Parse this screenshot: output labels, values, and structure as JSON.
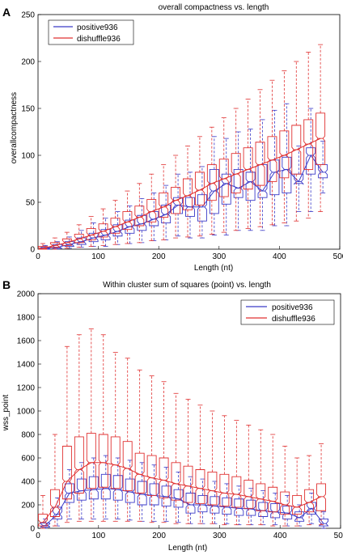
{
  "chart_data": [
    {
      "panel_label": "A",
      "type": "box",
      "title": "overall compactness vs. length",
      "xlabel": "Length (nt)",
      "ylabel": "overallcompactness",
      "xlim": [
        0,
        500
      ],
      "ylim": [
        0,
        250
      ],
      "xticks": [
        0,
        100,
        200,
        300,
        400,
        500
      ],
      "yticks": [
        0,
        50,
        100,
        150,
        200,
        250
      ],
      "legend_position": "top-left",
      "grid": false,
      "series": [
        {
          "name": "positive936",
          "color": "#3a3ac8",
          "boxes": [
            {
              "x": 10,
              "q1": 0,
              "med": 1,
              "q3": 2,
              "lo": 0,
              "hi": 4
            },
            {
              "x": 30,
              "q1": 1,
              "med": 2,
              "q3": 5,
              "lo": 0,
              "hi": 8
            },
            {
              "x": 50,
              "q1": 3,
              "med": 5,
              "q3": 8,
              "lo": 1,
              "hi": 13
            },
            {
              "x": 70,
              "q1": 5,
              "med": 8,
              "q3": 12,
              "lo": 2,
              "hi": 20
            },
            {
              "x": 90,
              "q1": 8,
              "med": 12,
              "q3": 17,
              "lo": 3,
              "hi": 28
            },
            {
              "x": 110,
              "q1": 10,
              "med": 15,
              "q3": 21,
              "lo": 3,
              "hi": 33
            },
            {
              "x": 130,
              "q1": 14,
              "med": 19,
              "q3": 26,
              "lo": 5,
              "hi": 40
            },
            {
              "x": 150,
              "q1": 17,
              "med": 24,
              "q3": 31,
              "lo": 6,
              "hi": 46
            },
            {
              "x": 170,
              "q1": 20,
              "med": 27,
              "q3": 36,
              "lo": 7,
              "hi": 54
            },
            {
              "x": 190,
              "q1": 25,
              "med": 32,
              "q3": 40,
              "lo": 9,
              "hi": 60
            },
            {
              "x": 210,
              "q1": 28,
              "med": 37,
              "q3": 47,
              "lo": 10,
              "hi": 68
            },
            {
              "x": 230,
              "q1": 38,
              "med": 47,
              "q3": 55,
              "lo": 14,
              "hi": 80
            },
            {
              "x": 250,
              "q1": 35,
              "med": 45,
              "q3": 55,
              "lo": 12,
              "hi": 82
            },
            {
              "x": 270,
              "q1": 30,
              "med": 45,
              "q3": 58,
              "lo": 12,
              "hi": 88
            },
            {
              "x": 290,
              "q1": 38,
              "med": 62,
              "q3": 85,
              "lo": 15,
              "hi": 120
            },
            {
              "x": 310,
              "q1": 48,
              "med": 70,
              "q3": 80,
              "lo": 15,
              "hi": 118
            },
            {
              "x": 330,
              "q1": 55,
              "med": 65,
              "q3": 85,
              "lo": 20,
              "hi": 125
            },
            {
              "x": 350,
              "q1": 52,
              "med": 72,
              "q3": 82,
              "lo": 20,
              "hi": 128
            },
            {
              "x": 370,
              "q1": 55,
              "med": 62,
              "q3": 90,
              "lo": 20,
              "hi": 138
            },
            {
              "x": 390,
              "q1": 58,
              "med": 82,
              "q3": 95,
              "lo": 25,
              "hi": 148
            },
            {
              "x": 410,
              "q1": 60,
              "med": 85,
              "q3": 98,
              "lo": 25,
              "hi": 155
            },
            {
              "x": 430,
              "q1": 70,
              "med": 72,
              "q3": 80,
              "lo": 40,
              "hi": 110
            },
            {
              "x": 450,
              "q1": 80,
              "med": 100,
              "q3": 108,
              "lo": 40,
              "hi": 150
            },
            {
              "x": 470,
              "q1": 76,
              "med": 82,
              "q3": 90,
              "lo": 60,
              "hi": 115
            }
          ]
        },
        {
          "name": "dishuffle936",
          "color": "#e03030",
          "boxes": [
            {
              "x": 10,
              "q1": 0,
              "med": 1,
              "q3": 3,
              "lo": 0,
              "hi": 6
            },
            {
              "x": 30,
              "q1": 2,
              "med": 4,
              "q3": 7,
              "lo": 0,
              "hi": 12
            },
            {
              "x": 50,
              "q1": 4,
              "med": 7,
              "q3": 11,
              "lo": 1,
              "hi": 18
            },
            {
              "x": 70,
              "q1": 7,
              "med": 11,
              "q3": 16,
              "lo": 2,
              "hi": 26
            },
            {
              "x": 90,
              "q1": 10,
              "med": 15,
              "q3": 22,
              "lo": 3,
              "hi": 35
            },
            {
              "x": 110,
              "q1": 13,
              "med": 19,
              "q3": 27,
              "lo": 4,
              "hi": 43
            },
            {
              "x": 130,
              "q1": 17,
              "med": 24,
              "q3": 33,
              "lo": 5,
              "hi": 52
            },
            {
              "x": 150,
              "q1": 21,
              "med": 29,
              "q3": 40,
              "lo": 6,
              "hi": 62
            },
            {
              "x": 170,
              "q1": 25,
              "med": 34,
              "q3": 46,
              "lo": 7,
              "hi": 70
            },
            {
              "x": 190,
              "q1": 29,
              "med": 40,
              "q3": 53,
              "lo": 9,
              "hi": 80
            },
            {
              "x": 210,
              "q1": 34,
              "med": 45,
              "q3": 60,
              "lo": 10,
              "hi": 90
            },
            {
              "x": 230,
              "q1": 38,
              "med": 52,
              "q3": 66,
              "lo": 12,
              "hi": 100
            },
            {
              "x": 250,
              "q1": 42,
              "med": 57,
              "q3": 75,
              "lo": 13,
              "hi": 110
            },
            {
              "x": 270,
              "q1": 47,
              "med": 63,
              "q3": 82,
              "lo": 14,
              "hi": 120
            },
            {
              "x": 290,
              "q1": 52,
              "med": 70,
              "q3": 90,
              "lo": 16,
              "hi": 130
            },
            {
              "x": 310,
              "q1": 56,
              "med": 75,
              "q3": 96,
              "lo": 18,
              "hi": 140
            },
            {
              "x": 330,
              "q1": 60,
              "med": 80,
              "q3": 102,
              "lo": 20,
              "hi": 150
            },
            {
              "x": 350,
              "q1": 64,
              "med": 85,
              "q3": 108,
              "lo": 22,
              "hi": 160
            },
            {
              "x": 370,
              "q1": 68,
              "med": 90,
              "q3": 114,
              "lo": 24,
              "hi": 170
            },
            {
              "x": 390,
              "q1": 72,
              "med": 95,
              "q3": 120,
              "lo": 26,
              "hi": 180
            },
            {
              "x": 410,
              "q1": 76,
              "med": 100,
              "q3": 126,
              "lo": 28,
              "hi": 190
            },
            {
              "x": 430,
              "q1": 80,
              "med": 106,
              "q3": 132,
              "lo": 30,
              "hi": 200
            },
            {
              "x": 450,
              "q1": 85,
              "med": 112,
              "q3": 138,
              "lo": 33,
              "hi": 210
            },
            {
              "x": 470,
              "q1": 90,
              "med": 118,
              "q3": 145,
              "lo": 40,
              "hi": 218
            }
          ]
        }
      ]
    },
    {
      "panel_label": "B",
      "type": "box",
      "title": "Within cluster sum of squares (point) vs. length",
      "xlabel": "Length (nt)",
      "ylabel": "wss_point",
      "xlim": [
        0,
        500
      ],
      "ylim": [
        0,
        2000
      ],
      "xticks": [
        0,
        100,
        200,
        300,
        400,
        500
      ],
      "yticks": [
        0,
        200,
        400,
        600,
        800,
        1000,
        1200,
        1400,
        1600,
        1800,
        2000
      ],
      "legend_position": "top-right",
      "grid": false,
      "series": [
        {
          "name": "positive936",
          "color": "#3a3ac8",
          "boxes": [
            {
              "x": 10,
              "q1": 10,
              "med": 25,
              "q3": 45,
              "lo": 0,
              "hi": 80
            },
            {
              "x": 30,
              "q1": 80,
              "med": 120,
              "q3": 180,
              "lo": 20,
              "hi": 260
            },
            {
              "x": 50,
              "q1": 220,
              "med": 300,
              "q3": 380,
              "lo": 80,
              "hi": 500
            },
            {
              "x": 70,
              "q1": 240,
              "med": 320,
              "q3": 420,
              "lo": 80,
              "hi": 560
            },
            {
              "x": 90,
              "q1": 250,
              "med": 330,
              "q3": 440,
              "lo": 80,
              "hi": 600
            },
            {
              "x": 110,
              "q1": 250,
              "med": 340,
              "q3": 460,
              "lo": 80,
              "hi": 620
            },
            {
              "x": 130,
              "q1": 240,
              "med": 330,
              "q3": 450,
              "lo": 80,
              "hi": 600
            },
            {
              "x": 150,
              "q1": 220,
              "med": 310,
              "q3": 420,
              "lo": 70,
              "hi": 580
            },
            {
              "x": 170,
              "q1": 200,
              "med": 290,
              "q3": 400,
              "lo": 60,
              "hi": 560
            },
            {
              "x": 190,
              "q1": 200,
              "med": 280,
              "q3": 380,
              "lo": 60,
              "hi": 540
            },
            {
              "x": 210,
              "q1": 190,
              "med": 270,
              "q3": 360,
              "lo": 60,
              "hi": 520
            },
            {
              "x": 230,
              "q1": 180,
              "med": 250,
              "q3": 330,
              "lo": 50,
              "hi": 480
            },
            {
              "x": 250,
              "q1": 130,
              "med": 200,
              "q3": 300,
              "lo": 40,
              "hi": 440
            },
            {
              "x": 270,
              "q1": 140,
              "med": 200,
              "q3": 280,
              "lo": 40,
              "hi": 420
            },
            {
              "x": 290,
              "q1": 130,
              "med": 190,
              "q3": 270,
              "lo": 40,
              "hi": 400
            },
            {
              "x": 310,
              "q1": 120,
              "med": 180,
              "q3": 260,
              "lo": 40,
              "hi": 380
            },
            {
              "x": 330,
              "q1": 110,
              "med": 170,
              "q3": 250,
              "lo": 30,
              "hi": 360
            },
            {
              "x": 350,
              "q1": 110,
              "med": 165,
              "q3": 240,
              "lo": 30,
              "hi": 340
            },
            {
              "x": 370,
              "q1": 100,
              "med": 150,
              "q3": 220,
              "lo": 30,
              "hi": 320
            },
            {
              "x": 390,
              "q1": 90,
              "med": 140,
              "q3": 210,
              "lo": 30,
              "hi": 300
            },
            {
              "x": 410,
              "q1": 80,
              "med": 130,
              "q3": 190,
              "lo": 20,
              "hi": 280
            },
            {
              "x": 430,
              "q1": 60,
              "med": 90,
              "q3": 140,
              "lo": 20,
              "hi": 200
            },
            {
              "x": 450,
              "q1": 120,
              "med": 170,
              "q3": 220,
              "lo": 40,
              "hi": 300
            },
            {
              "x": 470,
              "q1": 20,
              "med": 40,
              "q3": 80,
              "lo": 0,
              "hi": 140
            }
          ]
        },
        {
          "name": "dishuffle936",
          "color": "#e03030",
          "boxes": [
            {
              "x": 10,
              "q1": 20,
              "med": 50,
              "q3": 120,
              "lo": 0,
              "hi": 280
            },
            {
              "x": 30,
              "q1": 100,
              "med": 180,
              "q3": 330,
              "lo": 20,
              "hi": 800
            },
            {
              "x": 50,
              "q1": 250,
              "med": 400,
              "q3": 700,
              "lo": 50,
              "hi": 1550
            },
            {
              "x": 70,
              "q1": 300,
              "med": 500,
              "q3": 780,
              "lo": 60,
              "hi": 1650
            },
            {
              "x": 90,
              "q1": 340,
              "med": 560,
              "q3": 810,
              "lo": 60,
              "hi": 1700
            },
            {
              "x": 110,
              "q1": 350,
              "med": 560,
              "q3": 800,
              "lo": 60,
              "hi": 1650
            },
            {
              "x": 130,
              "q1": 340,
              "med": 540,
              "q3": 780,
              "lo": 60,
              "hi": 1500
            },
            {
              "x": 150,
              "q1": 320,
              "med": 510,
              "q3": 740,
              "lo": 60,
              "hi": 1450
            },
            {
              "x": 170,
              "q1": 300,
              "med": 460,
              "q3": 640,
              "lo": 60,
              "hi": 1350
            },
            {
              "x": 190,
              "q1": 280,
              "med": 430,
              "q3": 620,
              "lo": 50,
              "hi": 1300
            },
            {
              "x": 210,
              "q1": 260,
              "med": 410,
              "q3": 600,
              "lo": 50,
              "hi": 1250
            },
            {
              "x": 230,
              "q1": 240,
              "med": 380,
              "q3": 560,
              "lo": 40,
              "hi": 1150
            },
            {
              "x": 250,
              "q1": 220,
              "med": 360,
              "q3": 530,
              "lo": 40,
              "hi": 1100
            },
            {
              "x": 270,
              "q1": 210,
              "med": 340,
              "q3": 500,
              "lo": 40,
              "hi": 1050
            },
            {
              "x": 290,
              "q1": 200,
              "med": 320,
              "q3": 480,
              "lo": 40,
              "hi": 1000
            },
            {
              "x": 310,
              "q1": 190,
              "med": 300,
              "q3": 460,
              "lo": 30,
              "hi": 960
            },
            {
              "x": 330,
              "q1": 180,
              "med": 290,
              "q3": 440,
              "lo": 30,
              "hi": 920
            },
            {
              "x": 350,
              "q1": 170,
              "med": 270,
              "q3": 410,
              "lo": 30,
              "hi": 880
            },
            {
              "x": 370,
              "q1": 150,
              "med": 250,
              "q3": 380,
              "lo": 30,
              "hi": 840
            },
            {
              "x": 390,
              "q1": 140,
              "med": 230,
              "q3": 350,
              "lo": 20,
              "hi": 800
            },
            {
              "x": 410,
              "q1": 120,
              "med": 200,
              "q3": 310,
              "lo": 20,
              "hi": 700
            },
            {
              "x": 430,
              "q1": 120,
              "med": 180,
              "q3": 280,
              "lo": 20,
              "hi": 600
            },
            {
              "x": 450,
              "q1": 140,
              "med": 220,
              "q3": 330,
              "lo": 30,
              "hi": 620
            },
            {
              "x": 470,
              "q1": 150,
              "med": 270,
              "q3": 380,
              "lo": 30,
              "hi": 720
            }
          ]
        }
      ]
    }
  ]
}
